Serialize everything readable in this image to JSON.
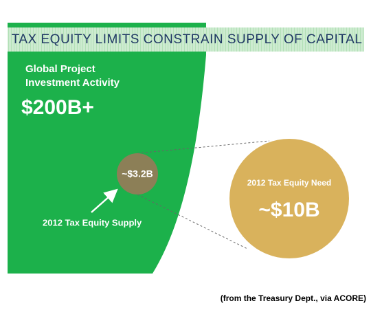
{
  "title": "TAX EQUITY LIMITS CONSTRAIN SUPPLY OF CAPITAL",
  "global": {
    "label_lines": [
      "Global Project",
      "Investment Activity"
    ],
    "value": "$200B+"
  },
  "supply": {
    "value": "~$3.2B",
    "label": "2012 Tax Equity Supply"
  },
  "need": {
    "label": "2012 Tax Equity Need",
    "value": "~$10B"
  },
  "source": "(from the Treasury Dept., via ACORE)"
}
